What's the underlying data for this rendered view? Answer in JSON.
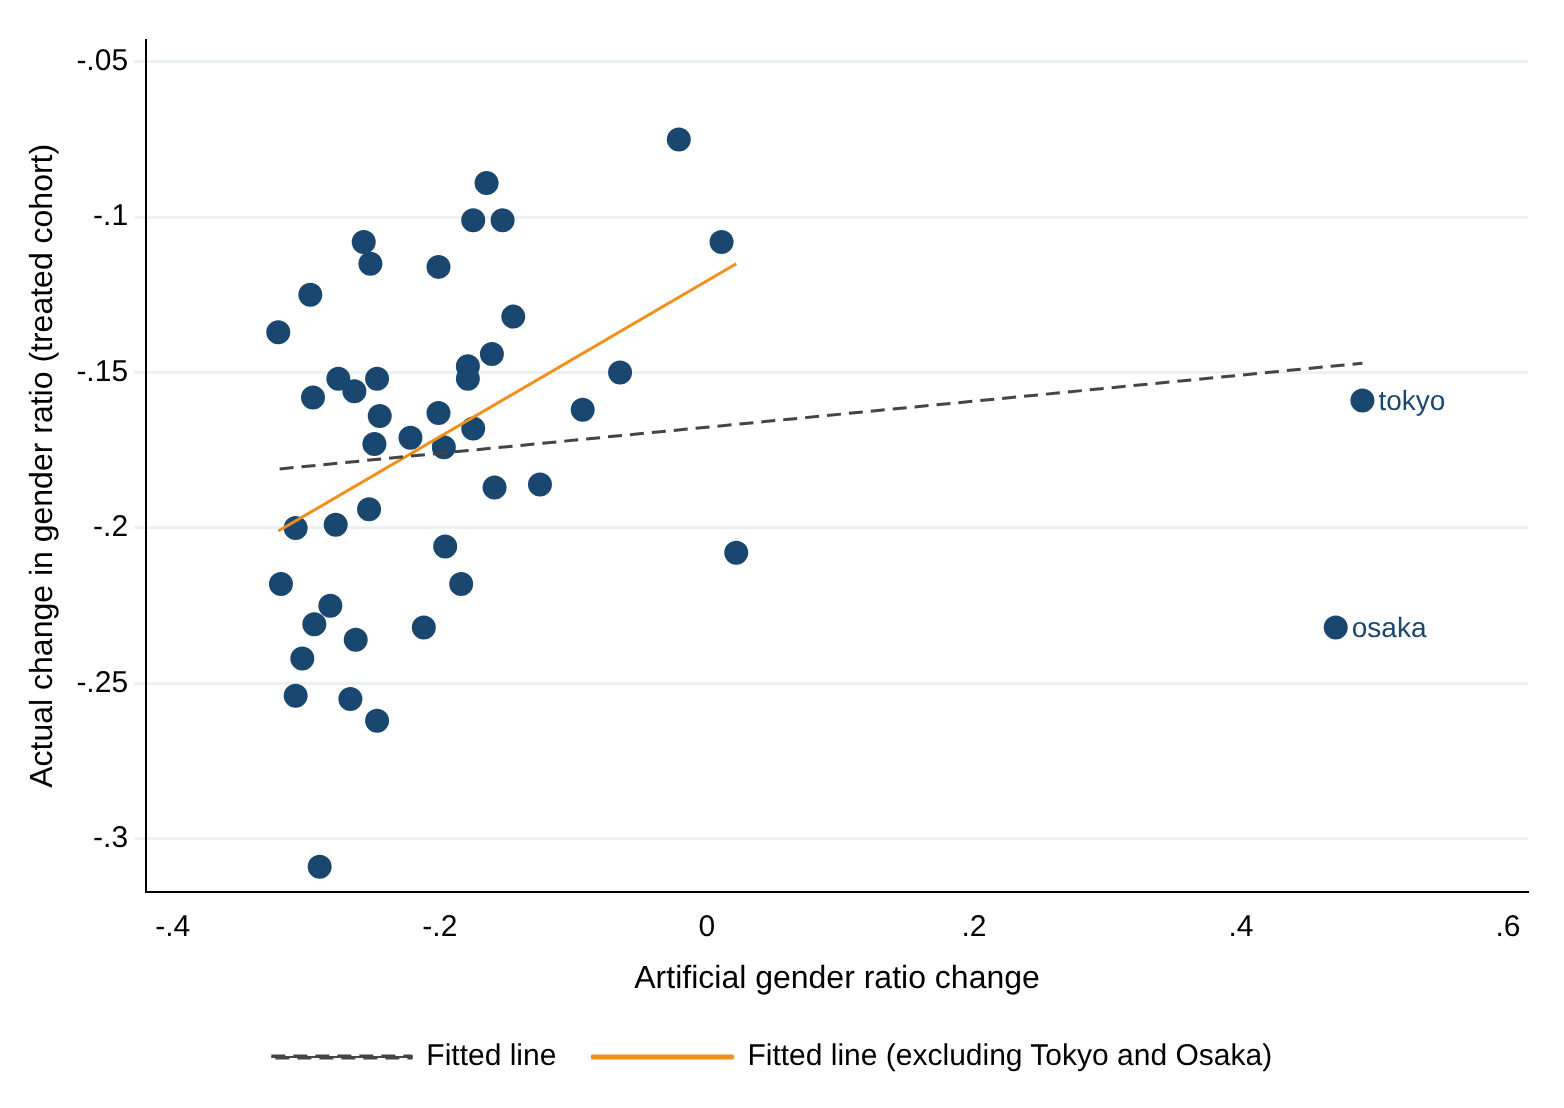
{
  "chart_data": {
    "type": "scatter",
    "xlabel": "Artificial gender ratio change",
    "ylabel": "Actual change in gender ratio (treated cohort)",
    "xlim": [
      -0.42,
      0.615
    ],
    "ylim": [
      -0.317,
      -0.043
    ],
    "xticks": [
      {
        "value": -0.4,
        "label": "-.4"
      },
      {
        "value": -0.2,
        "label": "-.2"
      },
      0,
      {
        "value": 0.2,
        "label": ".2"
      },
      {
        "value": 0.4,
        "label": ".4"
      },
      {
        "value": 0.6,
        "label": ".6"
      }
    ],
    "yticks": [
      {
        "value": -0.3,
        "label": "-.3"
      },
      {
        "value": -0.25,
        "label": "-.25"
      },
      {
        "value": -0.2,
        "label": "-.2"
      },
      {
        "value": -0.15,
        "label": "-.15"
      },
      {
        "value": -0.1,
        "label": "-.1"
      },
      {
        "value": -0.05,
        "label": "-.05"
      }
    ],
    "grid": "y",
    "legend": "bottom",
    "marker": "circle",
    "series": [
      {
        "type": "scatter",
        "color": "#1a476f",
        "x": [
          -0.021,
          -0.165,
          -0.175,
          -0.153,
          0.011,
          -0.257,
          -0.252,
          -0.201,
          -0.297,
          -0.321,
          -0.145,
          -0.161,
          -0.179,
          -0.179,
          -0.065,
          -0.276,
          -0.247,
          -0.295,
          -0.264,
          -0.245,
          -0.201,
          -0.093,
          -0.222,
          -0.175,
          -0.249,
          -0.197,
          -0.125,
          -0.159,
          -0.253,
          -0.308,
          -0.278,
          -0.196,
          0.022,
          -0.319,
          -0.184,
          -0.282,
          -0.294,
          -0.263,
          -0.212,
          -0.303,
          -0.308,
          -0.267,
          -0.247,
          -0.29,
          0.491,
          0.471
        ],
        "values": [
          -0.075,
          -0.089,
          -0.101,
          -0.101,
          -0.108,
          -0.108,
          -0.115,
          -0.116,
          -0.125,
          -0.137,
          -0.132,
          -0.144,
          -0.148,
          -0.152,
          -0.15,
          -0.152,
          -0.152,
          -0.158,
          -0.156,
          -0.164,
          -0.163,
          -0.162,
          -0.171,
          -0.168,
          -0.173,
          -0.174,
          -0.186,
          -0.187,
          -0.194,
          -0.2,
          -0.199,
          -0.206,
          -0.208,
          -0.218,
          -0.218,
          -0.225,
          -0.231,
          -0.236,
          -0.232,
          -0.242,
          -0.254,
          -0.255,
          -0.262,
          -0.309,
          -0.159,
          -0.232
        ]
      },
      {
        "type": "line",
        "name": "Fitted line",
        "color": "#444444",
        "line_style": "dashed",
        "marker": "none",
        "x": [
          -0.32,
          0.491
        ],
        "values": [
          -0.181,
          -0.147
        ]
      },
      {
        "type": "line",
        "name": "Fitted line (excluding Tokyo and Osaka)",
        "color": "#f28e1c",
        "line_style": "solid",
        "marker": "none",
        "x": [
          -0.321,
          0.022
        ],
        "values": [
          -0.201,
          -0.115
        ]
      }
    ],
    "annotations": [
      {
        "text": "tokyo",
        "x": 0.491,
        "y": -0.159
      },
      {
        "text": "osaka",
        "x": 0.471,
        "y": -0.232
      }
    ]
  }
}
